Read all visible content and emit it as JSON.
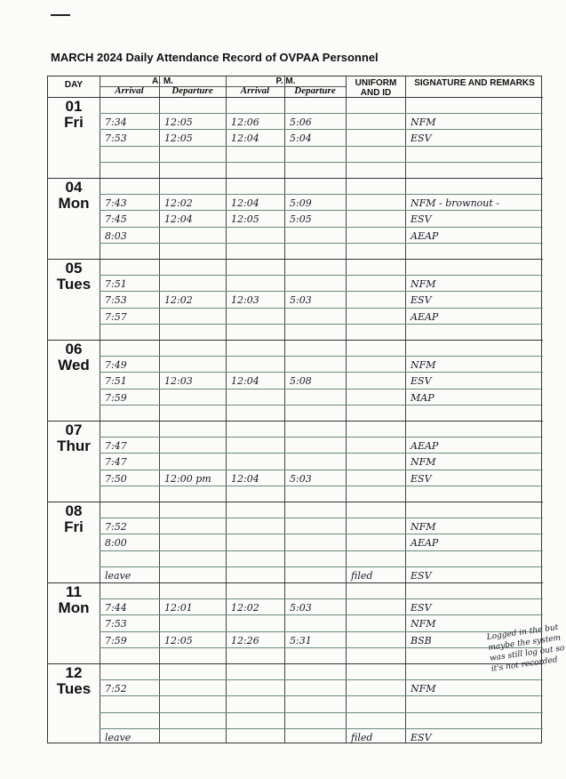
{
  "title": "MARCH 2024  Daily Attendance Record of OVPAA Personnel",
  "headers": {
    "day": "DAY",
    "am": "A. M.",
    "pm": "P. M.",
    "arrival": "Arrival",
    "departure": "Departure",
    "uniform": "UNIFORM AND ID",
    "signature": "SIGNATURE AND REMARKS"
  },
  "days": [
    {
      "num": "01",
      "name": "Fri",
      "rows": [
        [
          "",
          "",
          "",
          "",
          "",
          ""
        ],
        [
          "7:34",
          "12:05",
          "12:06",
          "5:06",
          "",
          "NFM"
        ],
        [
          "7:53",
          "12:05",
          "12:04",
          "5:04",
          "",
          "ESV"
        ],
        [
          "",
          "",
          "",
          "",
          "",
          ""
        ],
        [
          "",
          "",
          "",
          "",
          "",
          ""
        ]
      ]
    },
    {
      "num": "04",
      "name": "Mon",
      "rows": [
        [
          "",
          "",
          "",
          "",
          "",
          ""
        ],
        [
          "7:43",
          "12:02",
          "12:04",
          "5:09",
          "",
          "NFM - brownout -"
        ],
        [
          "7:45",
          "12:04",
          "12:05",
          "5:05",
          "",
          "ESV"
        ],
        [
          "8:03",
          "",
          "",
          "",
          "",
          "AEAP"
        ],
        [
          "",
          "",
          "",
          "",
          "",
          ""
        ]
      ]
    },
    {
      "num": "05",
      "name": "Tues",
      "rows": [
        [
          "",
          "",
          "",
          "",
          "",
          ""
        ],
        [
          "7:51",
          "",
          "",
          "",
          "",
          "NFM"
        ],
        [
          "7:53",
          "12:02",
          "12:03",
          "5:03",
          "",
          "ESV"
        ],
        [
          "7:57",
          "",
          "",
          "",
          "",
          "AEAP"
        ],
        [
          "",
          "",
          "",
          "",
          "",
          ""
        ]
      ]
    },
    {
      "num": "06",
      "name": "Wed",
      "rows": [
        [
          "",
          "",
          "",
          "",
          "",
          ""
        ],
        [
          "7:49",
          "",
          "",
          "",
          "",
          "NFM"
        ],
        [
          "7:51",
          "12:03",
          "12:04",
          "5:08",
          "",
          "ESV"
        ],
        [
          "7:59",
          "",
          "",
          "",
          "",
          "MAP"
        ],
        [
          "",
          "",
          "",
          "",
          "",
          ""
        ]
      ]
    },
    {
      "num": "07",
      "name": "Thur",
      "rows": [
        [
          "",
          "",
          "",
          "",
          "",
          ""
        ],
        [
          "7:47",
          "",
          "",
          "",
          "",
          "AEAP"
        ],
        [
          "7:47",
          "",
          "",
          "",
          "",
          "NFM"
        ],
        [
          "7:50",
          "12:00 pm",
          "12:04",
          "5:03",
          "",
          "ESV"
        ],
        [
          "",
          "",
          "",
          "",
          "",
          ""
        ]
      ]
    },
    {
      "num": "08",
      "name": "Fri",
      "rows": [
        [
          "",
          "",
          "",
          "",
          "",
          ""
        ],
        [
          "7:52",
          "",
          "",
          "",
          "",
          "NFM"
        ],
        [
          "8:00",
          "",
          "",
          "",
          "",
          "AEAP"
        ],
        [
          "",
          "",
          "",
          "",
          "",
          ""
        ],
        [
          "leave",
          "",
          "",
          "",
          "filed",
          "ESV"
        ]
      ]
    },
    {
      "num": "11",
      "name": "Mon",
      "rows": [
        [
          "",
          "",
          "",
          "",
          "",
          ""
        ],
        [
          "7:44",
          "12:01",
          "12:02",
          "5:03",
          "",
          "ESV"
        ],
        [
          "7:53",
          "",
          "",
          "",
          "",
          "NFM"
        ],
        [
          "7:59",
          "12:05",
          "12:26",
          "5:31",
          "",
          "BSB"
        ],
        [
          "",
          "",
          "",
          "",
          "",
          ""
        ]
      ]
    },
    {
      "num": "12",
      "name": "Tues",
      "rows": [
        [
          "",
          "",
          "",
          "",
          "",
          ""
        ],
        [
          "7:52",
          "",
          "",
          "",
          "",
          "NFM"
        ],
        [
          "",
          "",
          "",
          "",
          "",
          ""
        ],
        [
          "",
          "",
          "",
          "",
          "",
          ""
        ],
        [
          "leave",
          "",
          "",
          "",
          "filed",
          "ESV"
        ]
      ]
    }
  ],
  "margin_note": "Logged in the but maybe the system was still log out so it's not recorded",
  "colors": {
    "ink": "#1a1a2a",
    "grid": "#555555",
    "paper": "#fbfbf9"
  }
}
